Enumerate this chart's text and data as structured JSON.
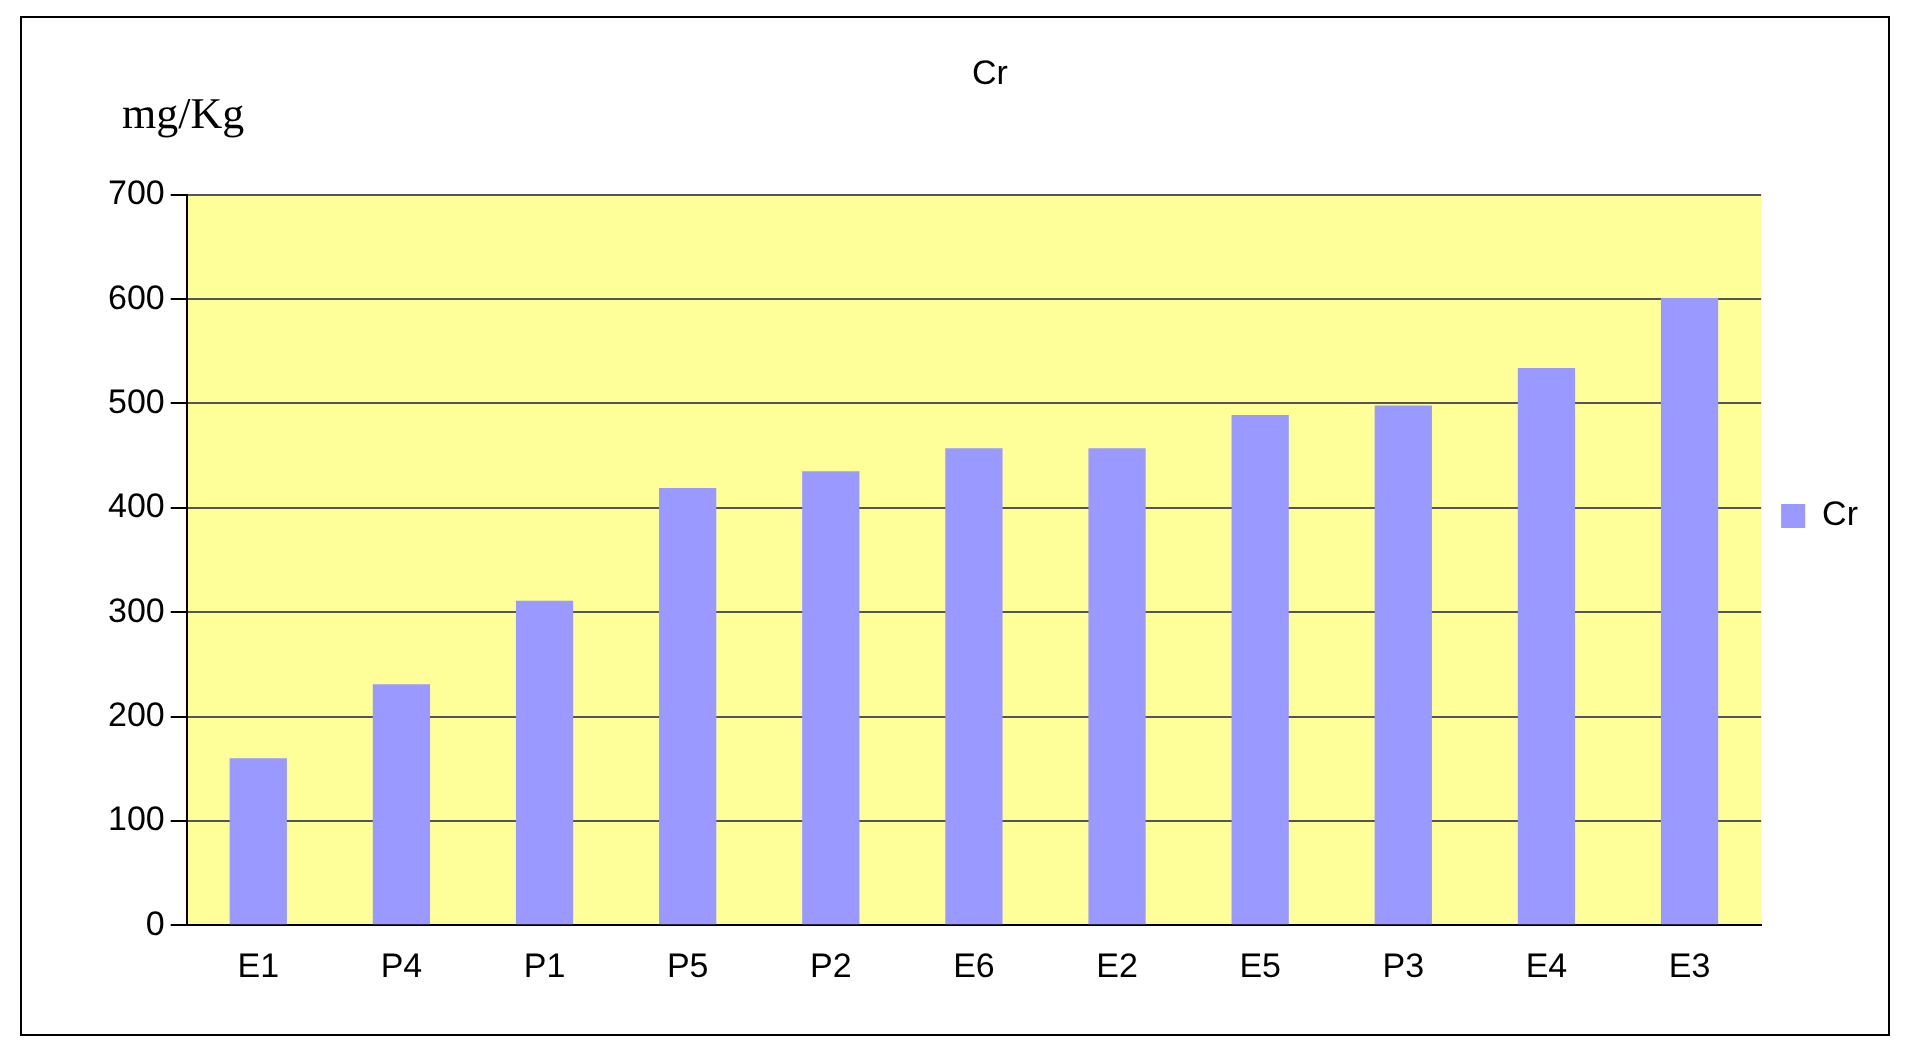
{
  "chart_data": {
    "type": "bar",
    "title": "Cr",
    "ylabel": "mg/Kg",
    "categories": [
      "E1",
      "P4",
      "P1",
      "P5",
      "P2",
      "E6",
      "E2",
      "E5",
      "P3",
      "E4",
      "E3"
    ],
    "series": [
      {
        "name": "Cr",
        "color": "#9999ff",
        "values": [
          160,
          231,
          311,
          419,
          435,
          457,
          457,
          489,
          498,
          534,
          601
        ]
      }
    ],
    "ylim": [
      0,
      700
    ],
    "yticks": [
      0,
      100,
      200,
      300,
      400,
      500,
      600,
      700
    ],
    "grid": "y",
    "legend": "right"
  }
}
